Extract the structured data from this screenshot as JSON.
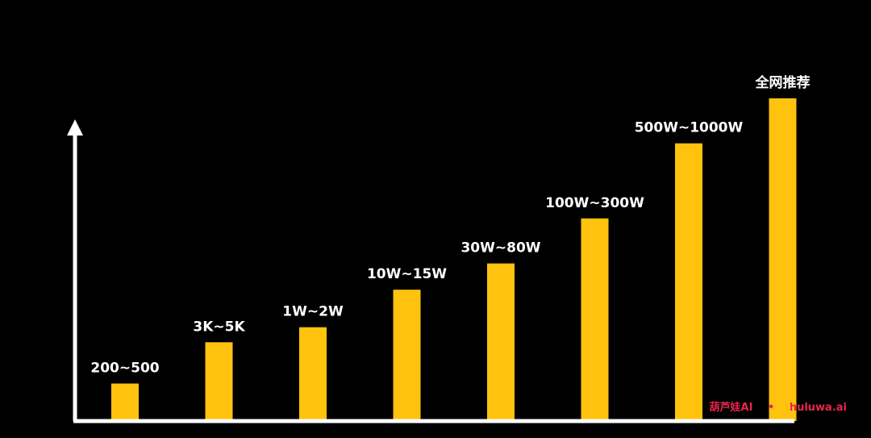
{
  "chart_data": {
    "type": "bar",
    "title": "",
    "xlabel": "",
    "ylabel": "",
    "categories": [
      "",
      "",
      "",
      "",
      "",
      "",
      "",
      ""
    ],
    "labels": [
      "200~500",
      "3K~5K",
      "1W~2W",
      "10W~15W",
      "30W~80W",
      "100W~300W",
      "500W~1000W",
      "全网推荐"
    ],
    "values": [
      1.0,
      2.1,
      2.5,
      3.5,
      4.2,
      5.4,
      7.4,
      8.6
    ],
    "ylim": [
      0,
      9.5
    ],
    "bar_color": "#FFC20E",
    "axis_color": "#FFFFFF",
    "label_color": "#FFFFFF",
    "grid": false,
    "legend": "none"
  },
  "watermark": {
    "brand": "葫芦娃AI",
    "separator": "•",
    "site": "huluwa.ai",
    "color": "#E8254B"
  }
}
